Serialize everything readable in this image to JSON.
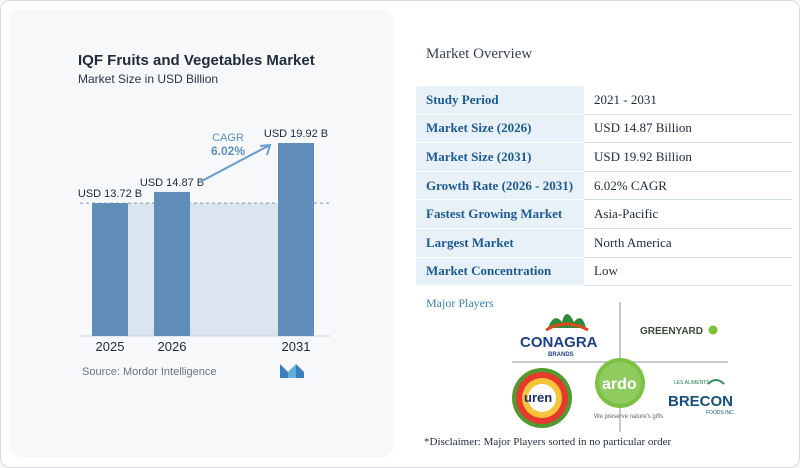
{
  "chart_data": {
    "type": "bar",
    "title": "IQF Fruits and Vegetables Market",
    "subtitle": "Market Size in USD Billion",
    "categories": [
      "2025",
      "2026",
      "2031"
    ],
    "values": [
      13.72,
      14.87,
      19.92
    ],
    "value_labels": [
      "USD 13.72 B",
      "USD 14.87 B",
      "USD 19.92 B"
    ],
    "annotation": {
      "label": "CAGR",
      "value": "6.02%"
    },
    "ylim": [
      0,
      20
    ],
    "grid": false,
    "legend": "none",
    "colors": {
      "bar": "#5f8db8",
      "shade": "#dbe5ef",
      "dashed": "#7a96b0",
      "arrow": "#6a9ccf"
    }
  },
  "source": "Source: Mordor Intelligence",
  "overview": {
    "title": "Market Overview",
    "rows": [
      {
        "label": "Study Period",
        "value": "2021 - 2031"
      },
      {
        "label": "Market Size (2026)",
        "value": "USD 14.87 Billion"
      },
      {
        "label": "Market Size (2031)",
        "value": "USD 19.92 Billion"
      },
      {
        "label": "Growth Rate (2026 - 2031)",
        "value": "6.02% CAGR"
      },
      {
        "label": "Fastest Growing Market",
        "value": "Asia-Pacific"
      },
      {
        "label": "Largest Market",
        "value": "North America"
      },
      {
        "label": "Market Concentration",
        "value": "Low"
      }
    ]
  },
  "players": {
    "title": "Major Players",
    "logos": {
      "conagra": "CONAGRA",
      "conagra_sub": "BRANDS",
      "greenyard": "GREENYARD",
      "uren": "uren",
      "ardo": "ardo",
      "ardo_tagline": "We preserve nature's gifts",
      "brecon_top": "LES ALIMENTS",
      "brecon": "BRECON",
      "brecon_sub": "FOODS INC."
    }
  },
  "disclaimer": "*Disclaimer: Major Players sorted in no particular order"
}
